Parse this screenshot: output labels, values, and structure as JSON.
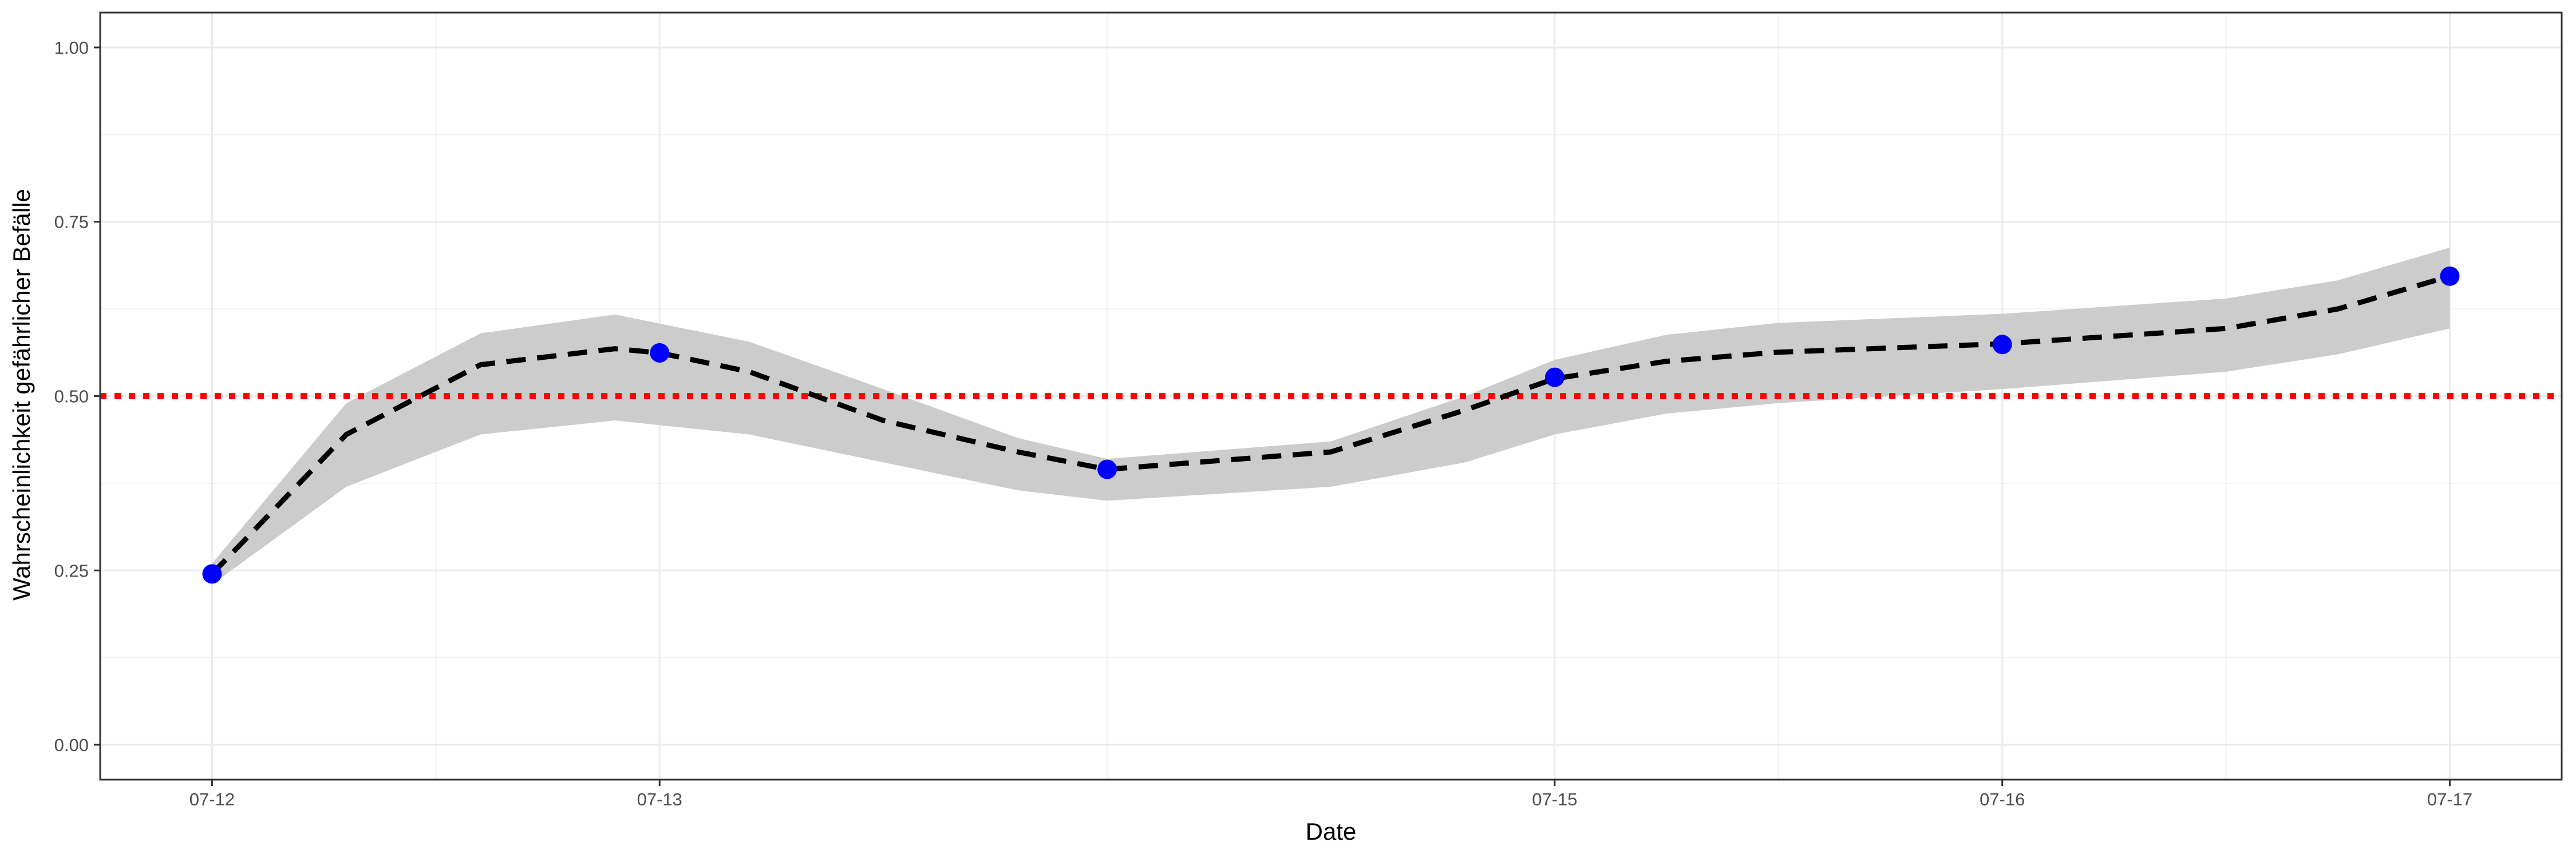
{
  "chart_data": {
    "type": "line",
    "title": "",
    "xlabel": "Date",
    "ylabel": "Wahrscheinlichkeit gefährlicher Befälle",
    "x_ticks": [
      "07-12",
      "07-13",
      "07-15",
      "07-16",
      "07-17"
    ],
    "x_tick_positions": [
      0,
      1,
      3,
      4,
      5
    ],
    "xlim": [
      -0.25,
      5.25
    ],
    "ylim": [
      -0.05,
      1.05
    ],
    "y_ticks": [
      0.0,
      0.25,
      0.5,
      0.75,
      1.0
    ],
    "y_tick_labels": [
      "0.00",
      "0.25",
      "0.50",
      "0.75",
      "1.00"
    ],
    "grid": true,
    "series": [
      {
        "kind": "ribbon",
        "x": [
          0,
          0.3,
          0.6,
          0.9,
          1.2,
          1.5,
          1.8,
          2.0,
          2.5,
          2.8,
          3.0,
          3.25,
          3.5,
          4.0,
          4.5,
          4.75,
          5.0
        ],
        "lower": [
          0.23,
          0.37,
          0.445,
          0.465,
          0.445,
          0.405,
          0.365,
          0.35,
          0.37,
          0.405,
          0.445,
          0.475,
          0.49,
          0.51,
          0.535,
          0.56,
          0.597
        ],
        "upper": [
          0.26,
          0.49,
          0.59,
          0.617,
          0.578,
          0.51,
          0.44,
          0.41,
          0.435,
          0.5,
          0.552,
          0.588,
          0.605,
          0.618,
          0.64,
          0.666,
          0.713
        ]
      },
      {
        "kind": "line",
        "style": "dashed",
        "x": [
          0,
          0.3,
          0.6,
          0.9,
          1.0,
          1.2,
          1.5,
          1.8,
          2.0,
          2.5,
          2.8,
          3.0,
          3.25,
          3.5,
          4.0,
          4.5,
          4.75,
          5.0
        ],
        "values": [
          0.245,
          0.445,
          0.545,
          0.568,
          0.562,
          0.535,
          0.465,
          0.42,
          0.395,
          0.42,
          0.48,
          0.525,
          0.55,
          0.563,
          0.575,
          0.597,
          0.625,
          0.672
        ]
      },
      {
        "kind": "points",
        "x": [
          0,
          1,
          2,
          3,
          4,
          5
        ],
        "values": [
          0.245,
          0.562,
          0.395,
          0.527,
          0.574,
          0.672
        ]
      },
      {
        "kind": "hline",
        "style": "dotted",
        "value": 0.5
      }
    ],
    "colors": {
      "ribbon": "#cccccc",
      "line": "#000000",
      "points": "#0000ff",
      "threshold": "#ff0000",
      "grid_major": "#ebebeb",
      "grid_minor": "#f3f3f3",
      "panel_border": "#333333"
    }
  }
}
